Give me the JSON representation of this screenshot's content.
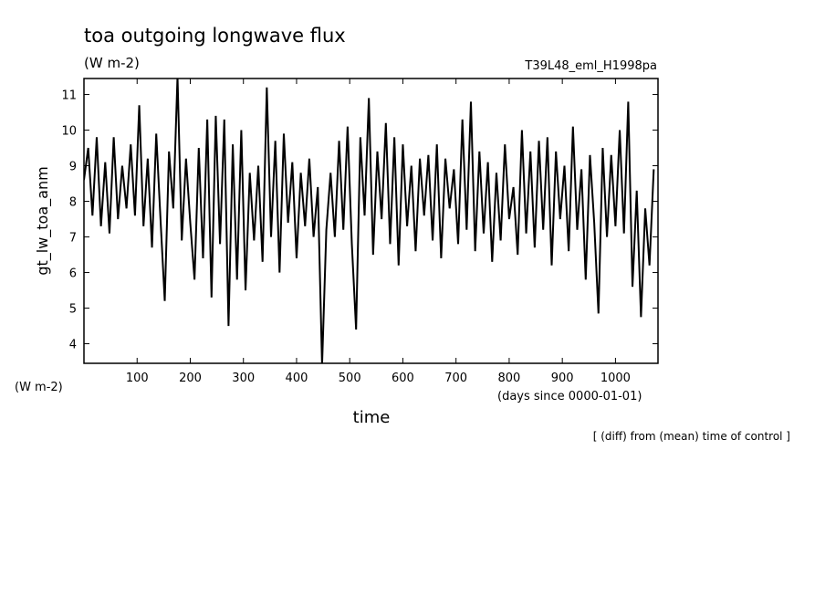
{
  "chart_data": {
    "type": "line",
    "title": "toa outgoing longwave flux",
    "units": "(W m-2)",
    "experiment": "T39L48_eml_H1998pa",
    "ylabel": "gt_lw_toa_anm",
    "y_units": "(W m-2)",
    "x_units": "(days since 0000-01-01)",
    "xlabel": "time",
    "note": "[ (diff) from (mean) time of control ]",
    "xlim": [
      0,
      1080
    ],
    "ylim": [
      3.45,
      11.45
    ],
    "xticks": [
      100,
      200,
      300,
      400,
      500,
      600,
      700,
      800,
      900,
      1000
    ],
    "yticks": [
      4,
      5,
      6,
      7,
      8,
      9,
      10,
      11
    ],
    "series": [
      {
        "color": "#000000",
        "x": [
          0,
          8,
          16,
          24,
          32,
          40,
          48,
          56,
          64,
          72,
          80,
          88,
          96,
          104,
          112,
          120,
          128,
          136,
          144,
          152,
          160,
          168,
          176,
          184,
          192,
          200,
          208,
          216,
          224,
          232,
          240,
          248,
          256,
          264,
          272,
          280,
          288,
          296,
          304,
          312,
          320,
          328,
          336,
          344,
          352,
          360,
          368,
          376,
          384,
          392,
          400,
          408,
          416,
          424,
          432,
          440,
          448,
          456,
          464,
          472,
          480,
          488,
          496,
          504,
          512,
          520,
          528,
          536,
          544,
          552,
          560,
          568,
          576,
          584,
          592,
          600,
          608,
          616,
          624,
          632,
          640,
          648,
          656,
          664,
          672,
          680,
          688,
          696,
          704,
          712,
          720,
          728,
          736,
          744,
          752,
          760,
          768,
          776,
          784,
          792,
          800,
          808,
          816,
          824,
          832,
          840,
          848,
          856,
          864,
          872,
          880,
          888,
          896,
          904,
          912,
          920,
          928,
          936,
          944,
          952,
          960,
          968,
          976,
          984,
          992,
          1000,
          1008,
          1016,
          1024,
          1032,
          1040,
          1048,
          1056,
          1064,
          1072
        ],
        "values": [
          8.6,
          9.5,
          7.6,
          9.8,
          7.3,
          9.1,
          7.1,
          9.8,
          7.5,
          9.0,
          7.8,
          9.6,
          7.6,
          10.7,
          7.3,
          9.2,
          6.7,
          9.9,
          7.5,
          5.2,
          9.4,
          7.8,
          11.5,
          6.9,
          9.2,
          7.4,
          5.8,
          9.5,
          6.4,
          10.3,
          5.3,
          10.4,
          6.8,
          10.3,
          4.5,
          9.6,
          5.8,
          10.0,
          5.5,
          8.8,
          6.9,
          9.0,
          6.3,
          11.2,
          7.0,
          9.7,
          6.0,
          9.9,
          7.4,
          9.1,
          6.4,
          8.8,
          7.3,
          9.2,
          7.0,
          8.4,
          3.4,
          7.2,
          8.8,
          7.0,
          9.7,
          7.2,
          10.1,
          6.8,
          4.4,
          9.8,
          7.6,
          10.9,
          6.5,
          9.4,
          7.5,
          10.2,
          6.8,
          9.8,
          6.2,
          9.6,
          7.3,
          9.0,
          6.6,
          9.2,
          7.6,
          9.3,
          6.9,
          9.6,
          6.4,
          9.2,
          7.8,
          8.9,
          6.8,
          10.3,
          7.2,
          10.8,
          6.6,
          9.4,
          7.1,
          9.1,
          6.3,
          8.8,
          6.9,
          9.6,
          7.5,
          8.4,
          6.5,
          10.0,
          7.1,
          9.4,
          6.7,
          9.7,
          7.2,
          9.8,
          6.2,
          9.4,
          7.5,
          9.0,
          6.6,
          10.1,
          7.2,
          8.9,
          5.8,
          9.3,
          7.4,
          4.85,
          9.5,
          7.0,
          9.3,
          7.3,
          10.0,
          7.1,
          10.8,
          5.6,
          8.3,
          4.75,
          7.8,
          6.2,
          8.9
        ]
      }
    ]
  }
}
